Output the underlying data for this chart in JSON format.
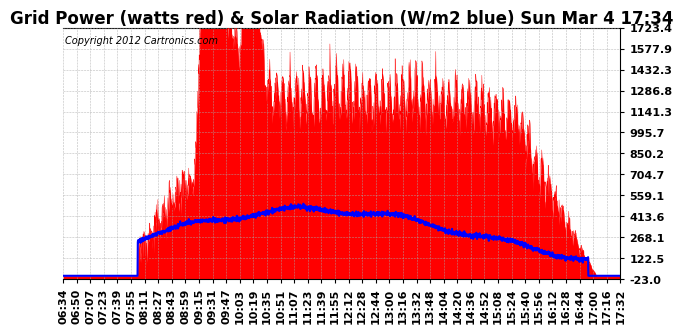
{
  "title": "Grid Power (watts red) & Solar Radiation (W/m2 blue) Sun Mar 4 17:34",
  "copyright": "Copyright 2012 Cartronics.com",
  "ylim": [
    -23.0,
    1723.4
  ],
  "yticks": [
    -23.0,
    122.5,
    268.1,
    413.6,
    559.1,
    704.7,
    850.2,
    995.7,
    1141.3,
    1286.8,
    1432.3,
    1577.9,
    1723.4
  ],
  "x_labels": [
    "06:34",
    "06:50",
    "07:07",
    "07:23",
    "07:39",
    "07:55",
    "08:11",
    "08:27",
    "08:43",
    "08:59",
    "09:15",
    "09:31",
    "09:47",
    "10:03",
    "10:19",
    "10:35",
    "10:51",
    "11:07",
    "11:23",
    "11:39",
    "11:55",
    "12:12",
    "12:28",
    "12:44",
    "13:00",
    "13:16",
    "13:32",
    "13:48",
    "14:04",
    "14:20",
    "14:36",
    "14:52",
    "15:08",
    "15:24",
    "15:40",
    "15:56",
    "16:12",
    "16:28",
    "16:44",
    "17:00",
    "17:16",
    "17:32"
  ],
  "background_color": "#ffffff",
  "grid_color": "#aaaaaa",
  "red_color": "#ff0000",
  "blue_color": "#0000ff",
  "title_fontsize": 12,
  "tick_fontsize": 8,
  "copyright_fontsize": 7
}
